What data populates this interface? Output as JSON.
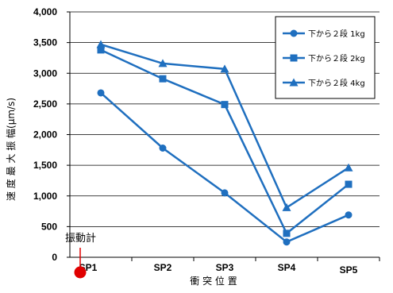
{
  "chart_data": {
    "type": "line",
    "title": "",
    "xlabel": "衝 突 位 置",
    "ylabel": "速 度 最 大 振 幅(μm/s)",
    "categories": [
      "SP1",
      "SP2",
      "SP3",
      "SP4",
      "SP5"
    ],
    "ylim": [
      0,
      4000
    ],
    "y_ticks": [
      "0",
      "500",
      "1,000",
      "1,500",
      "2,000",
      "2,500",
      "3,000",
      "3,500",
      "4,000"
    ],
    "y_tick_values": [
      0,
      500,
      1000,
      1500,
      2000,
      2500,
      3000,
      3500,
      4000
    ],
    "grid": "horizontal",
    "legend_position": "top-right",
    "color": "#1F6FBF",
    "series": [
      {
        "name": "下から２段 1kg",
        "marker": "circle",
        "values": [
          2680,
          1780,
          1050,
          250,
          690
        ]
      },
      {
        "name": "下から２段 2kg",
        "marker": "square",
        "values": [
          3380,
          2910,
          2490,
          390,
          1190
        ]
      },
      {
        "name": "下から２段 4kg",
        "marker": "triangle",
        "values": [
          3470,
          3160,
          3070,
          810,
          1460
        ]
      }
    ],
    "annotation": {
      "text": "振動計",
      "marker_color": "#E00000"
    }
  }
}
